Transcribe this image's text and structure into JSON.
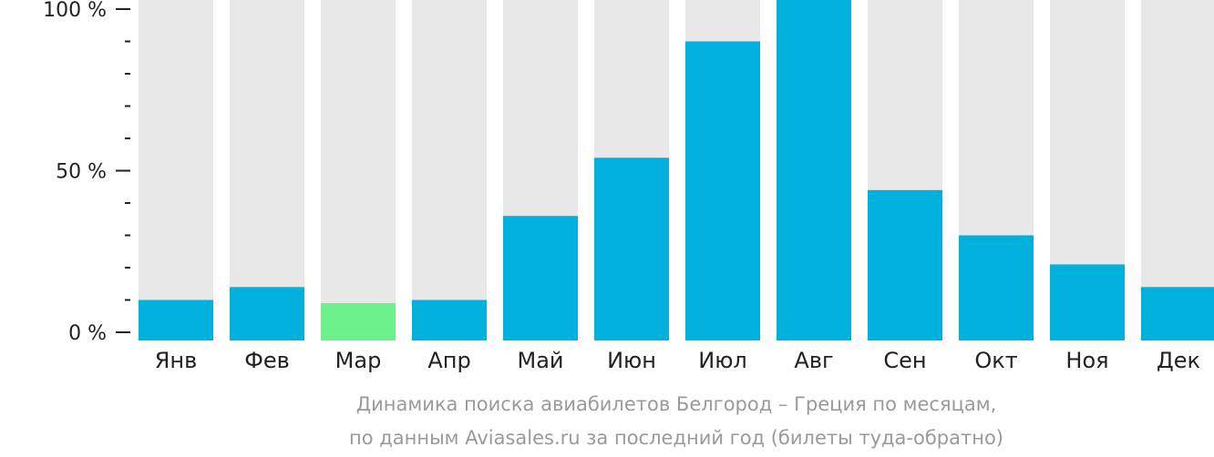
{
  "chart_data": {
    "type": "bar",
    "categories": [
      "Янв",
      "Фев",
      "Мар",
      "Апр",
      "Май",
      "Июн",
      "Июл",
      "Авг",
      "Сен",
      "Окт",
      "Ноя",
      "Дек"
    ],
    "values": [
      10,
      14,
      9,
      10,
      36,
      54,
      90,
      100,
      44,
      30,
      21,
      14
    ],
    "ylim": [
      0,
      100
    ],
    "yticks": [
      {
        "value": 0,
        "label": "0 %"
      },
      {
        "value": 50,
        "label": "50 %"
      },
      {
        "value": 100,
        "label": "100 %"
      }
    ],
    "minor_tick_step": 10,
    "highlight_index": 2,
    "colors": {
      "bar": "#00b1dd",
      "highlight": "#6cf089",
      "background_bar": "#e8e8e8",
      "axis": "#222222"
    },
    "caption_line1": "Динамика поиска авиабилетов Белгород – Греция по месяцам,",
    "caption_line2": "по данным Aviasales.ru за последний год (билеты туда-обратно)"
  }
}
